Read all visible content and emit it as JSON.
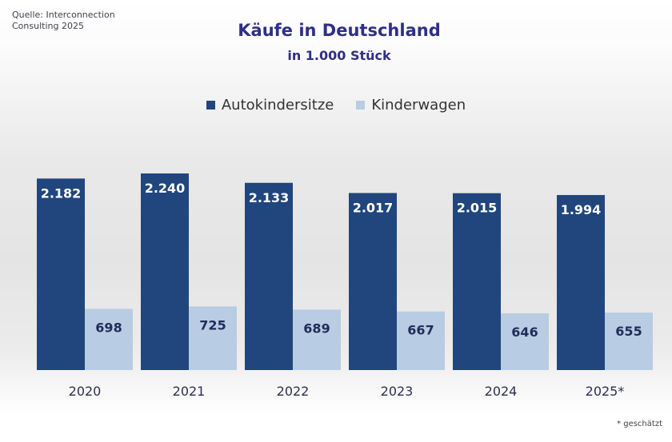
{
  "source": [
    "Quelle: Interconnection",
    "Consulting 2025"
  ],
  "footnote": "* geschätzt",
  "chart_data": {
    "type": "bar",
    "title": "Käufe in Deutschland",
    "subtitle": "in 1.000 Stück",
    "categories": [
      "2020",
      "2021",
      "2022",
      "2023",
      "2024",
      "2025*"
    ],
    "series": [
      {
        "name": "Autokindersitze",
        "values": [
          2182,
          2240,
          2133,
          2017,
          2015,
          1994
        ],
        "labels": [
          "2.182",
          "2.240",
          "2.133",
          "2.017",
          "2.015",
          "1.994"
        ],
        "color": "#20467d"
      },
      {
        "name": "Kinderwagen",
        "values": [
          698,
          725,
          689,
          667,
          646,
          655
        ],
        "labels": [
          "698",
          "725",
          "689",
          "667",
          "646",
          "655"
        ],
        "color": "#b8cce4"
      }
    ],
    "ylim": [
      0,
      2400
    ],
    "grid": false,
    "legend": "top-center"
  }
}
